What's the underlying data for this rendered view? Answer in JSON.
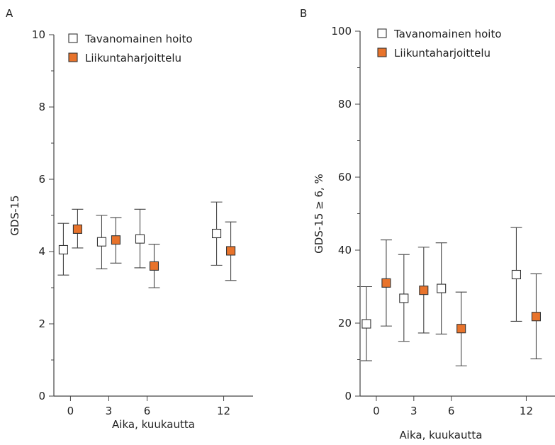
{
  "chart_data": [
    {
      "type": "scatter",
      "panel_label": "A",
      "title": "",
      "xlabel": "Aika, kuukautta",
      "ylabel": "GDS-15",
      "x_ticks": [
        0,
        3,
        6,
        12
      ],
      "y_ticks": [
        0,
        2,
        4,
        6,
        8,
        10
      ],
      "xlim": [
        -1.3,
        14.3
      ],
      "ylim": [
        0,
        10
      ],
      "legend_position": "top-left",
      "series": [
        {
          "name": "Tavanomainen hoito",
          "color": "#ffffff",
          "points": [
            {
              "x": 0,
              "y": 4.05,
              "lo": 3.35,
              "hi": 4.78
            },
            {
              "x": 3,
              "y": 4.27,
              "lo": 3.52,
              "hi": 5.0
            },
            {
              "x": 6,
              "y": 4.35,
              "lo": 3.55,
              "hi": 5.17
            },
            {
              "x": 12,
              "y": 4.5,
              "lo": 3.62,
              "hi": 5.37
            }
          ]
        },
        {
          "name": "Liikuntaharjoittelu",
          "color": "#e8732b",
          "points": [
            {
              "x": 0,
              "y": 4.62,
              "lo": 4.1,
              "hi": 5.17
            },
            {
              "x": 3,
              "y": 4.32,
              "lo": 3.68,
              "hi": 4.94
            },
            {
              "x": 6,
              "y": 3.6,
              "lo": 3.0,
              "hi": 4.2
            },
            {
              "x": 12,
              "y": 4.02,
              "lo": 3.2,
              "hi": 4.82
            }
          ]
        }
      ]
    },
    {
      "type": "scatter",
      "panel_label": "B",
      "title": "",
      "xlabel": "Aika, kuukautta",
      "ylabel": "GDS-15 ≥ 6, %",
      "x_ticks": [
        0,
        3,
        6,
        12
      ],
      "y_ticks": [
        0,
        20,
        40,
        60,
        80,
        100
      ],
      "xlim": [
        -1.3,
        14.3
      ],
      "ylim": [
        0,
        100
      ],
      "legend_position": "top-left",
      "series": [
        {
          "name": "Tavanomainen hoito",
          "color": "#ffffff",
          "points": [
            {
              "x": 0,
              "y": 19.8,
              "lo": 9.7,
              "hi": 30.0
            },
            {
              "x": 3,
              "y": 26.8,
              "lo": 15.0,
              "hi": 38.8
            },
            {
              "x": 6,
              "y": 29.5,
              "lo": 17.0,
              "hi": 42.0
            },
            {
              "x": 12,
              "y": 33.3,
              "lo": 20.5,
              "hi": 46.2
            }
          ]
        },
        {
          "name": "Liikuntaharjoittelu",
          "color": "#e8732b",
          "points": [
            {
              "x": 0,
              "y": 31.0,
              "lo": 19.2,
              "hi": 42.8
            },
            {
              "x": 3,
              "y": 29.0,
              "lo": 17.3,
              "hi": 40.8
            },
            {
              "x": 6,
              "y": 18.5,
              "lo": 8.3,
              "hi": 28.5
            },
            {
              "x": 12,
              "y": 21.8,
              "lo": 10.2,
              "hi": 33.5
            }
          ]
        }
      ]
    }
  ]
}
